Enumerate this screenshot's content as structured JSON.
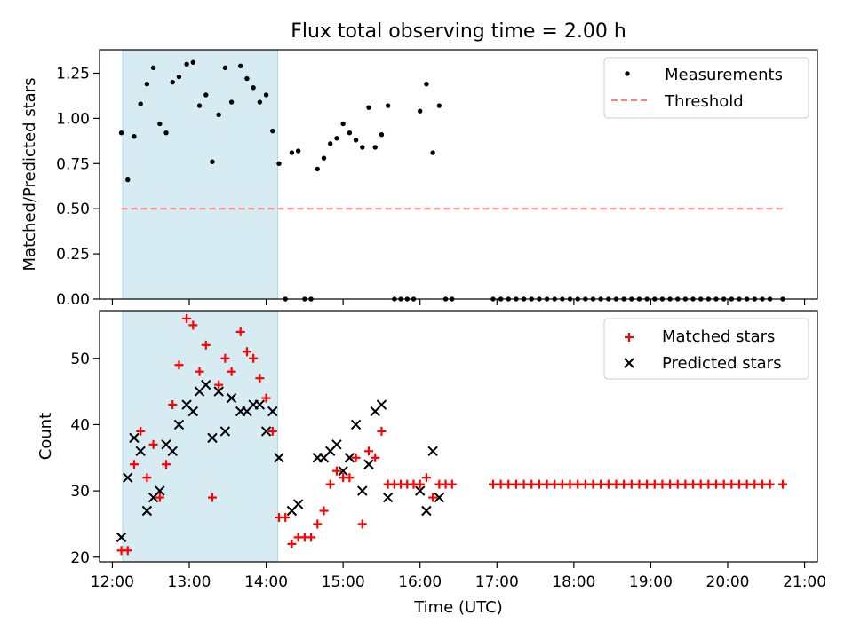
{
  "figure": {
    "title": "Flux total observing time = 2.00 h",
    "colors": {
      "shade": "#add8e6",
      "red": "#ff0000",
      "threshold": "#ff7f7f",
      "black": "#000000"
    }
  },
  "chart_data": [
    {
      "type": "scatter",
      "title": "Flux total observing time = 2.00 h",
      "xlabel": "",
      "ylabel": "Matched/Predicted stars",
      "xlim": [
        "11:50",
        "21:10"
      ],
      "ylim": [
        0,
        1.38
      ],
      "x_ticks": [
        "12:00",
        "13:00",
        "14:00",
        "15:00",
        "16:00",
        "17:00",
        "18:00",
        "19:00",
        "20:00",
        "21:00"
      ],
      "x_tick_labels_visible": false,
      "y_ticks": [
        0.0,
        0.25,
        0.5,
        0.75,
        1.0,
        1.25
      ],
      "y_tick_labels": [
        "0.00",
        "0.25",
        "0.50",
        "0.75",
        "1.00",
        "1.25"
      ],
      "shaded_region": [
        "12:08",
        "14:09"
      ],
      "legend_position": "upper right",
      "series": [
        {
          "name": "Measurements",
          "kind": "dots",
          "color": "#000000",
          "points": [
            [
              "12:07",
              0.92
            ],
            [
              "12:12",
              0.66
            ],
            [
              "12:17",
              0.9
            ],
            [
              "12:22",
              1.08
            ],
            [
              "12:27",
              1.19
            ],
            [
              "12:32",
              1.28
            ],
            [
              "12:37",
              0.97
            ],
            [
              "12:42",
              0.92
            ],
            [
              "12:47",
              1.2
            ],
            [
              "12:52",
              1.23
            ],
            [
              "12:58",
              1.3
            ],
            [
              "13:03",
              1.31
            ],
            [
              "13:08",
              1.07
            ],
            [
              "13:13",
              1.13
            ],
            [
              "13:18",
              0.76
            ],
            [
              "13:23",
              1.02
            ],
            [
              "13:28",
              1.28
            ],
            [
              "13:33",
              1.09
            ],
            [
              "13:40",
              1.29
            ],
            [
              "13:45",
              1.22
            ],
            [
              "13:50",
              1.17
            ],
            [
              "13:55",
              1.09
            ],
            [
              "14:00",
              1.13
            ],
            [
              "14:05",
              0.93
            ],
            [
              "14:10",
              0.75
            ],
            [
              "14:15",
              0.0
            ],
            [
              "14:20",
              0.81
            ],
            [
              "14:25",
              0.82
            ],
            [
              "14:30",
              0.0
            ],
            [
              "14:35",
              0.0
            ],
            [
              "14:40",
              0.72
            ],
            [
              "14:45",
              0.78
            ],
            [
              "14:50",
              0.86
            ],
            [
              "14:55",
              0.89
            ],
            [
              "15:00",
              0.97
            ],
            [
              "15:05",
              0.92
            ],
            [
              "15:10",
              0.88
            ],
            [
              "15:15",
              0.84
            ],
            [
              "15:20",
              1.06
            ],
            [
              "15:25",
              0.84
            ],
            [
              "15:30",
              0.91
            ],
            [
              "15:35",
              1.07
            ],
            [
              "15:40",
              0.0
            ],
            [
              "15:45",
              0.0
            ],
            [
              "15:50",
              0.0
            ],
            [
              "15:55",
              0.0
            ],
            [
              "16:00",
              1.04
            ],
            [
              "16:05",
              1.19
            ],
            [
              "16:10",
              0.81
            ],
            [
              "16:15",
              1.07
            ],
            [
              "16:20",
              0.0
            ],
            [
              "16:25",
              0.0
            ],
            [
              "16:57",
              0.0
            ],
            [
              "17:03",
              0.0
            ],
            [
              "17:09",
              0.0
            ],
            [
              "17:15",
              0.0
            ],
            [
              "17:21",
              0.0
            ],
            [
              "17:27",
              0.0
            ],
            [
              "17:33",
              0.0
            ],
            [
              "17:39",
              0.0
            ],
            [
              "17:45",
              0.0
            ],
            [
              "17:51",
              0.0
            ],
            [
              "17:57",
              0.0
            ],
            [
              "18:03",
              0.0
            ],
            [
              "18:09",
              0.0
            ],
            [
              "18:15",
              0.0
            ],
            [
              "18:21",
              0.0
            ],
            [
              "18:27",
              0.0
            ],
            [
              "18:33",
              0.0
            ],
            [
              "18:39",
              0.0
            ],
            [
              "18:45",
              0.0
            ],
            [
              "18:51",
              0.0
            ],
            [
              "18:57",
              0.0
            ],
            [
              "19:03",
              0.0
            ],
            [
              "19:09",
              0.0
            ],
            [
              "19:15",
              0.0
            ],
            [
              "19:21",
              0.0
            ],
            [
              "19:27",
              0.0
            ],
            [
              "19:33",
              0.0
            ],
            [
              "19:39",
              0.0
            ],
            [
              "19:45",
              0.0
            ],
            [
              "19:51",
              0.0
            ],
            [
              "19:57",
              0.0
            ],
            [
              "20:03",
              0.0
            ],
            [
              "20:09",
              0.0
            ],
            [
              "20:15",
              0.0
            ],
            [
              "20:21",
              0.0
            ],
            [
              "20:27",
              0.0
            ],
            [
              "20:33",
              0.0
            ],
            [
              "20:43",
              0.0
            ]
          ]
        },
        {
          "name": "Threshold",
          "kind": "dashed-line",
          "color": "#ff7f7f",
          "points": [
            [
              "12:07",
              0.5
            ],
            [
              "20:43",
              0.5
            ]
          ]
        }
      ]
    },
    {
      "type": "scatter",
      "title": "",
      "xlabel": "Time (UTC)",
      "ylabel": "Count",
      "xlim": [
        "11:50",
        "21:10"
      ],
      "ylim": [
        19.3,
        57.2
      ],
      "x_ticks": [
        "12:00",
        "13:00",
        "14:00",
        "15:00",
        "16:00",
        "17:00",
        "18:00",
        "19:00",
        "20:00",
        "21:00"
      ],
      "x_tick_labels": [
        "12:00",
        "13:00",
        "14:00",
        "15:00",
        "16:00",
        "17:00",
        "18:00",
        "19:00",
        "20:00",
        "21:00"
      ],
      "y_ticks": [
        20,
        30,
        40,
        50
      ],
      "y_tick_labels": [
        "20",
        "30",
        "40",
        "50"
      ],
      "shaded_region": [
        "12:08",
        "14:09"
      ],
      "legend_position": "upper right",
      "series": [
        {
          "name": "Matched stars",
          "kind": "plus",
          "color": "#ff0000",
          "points": [
            [
              "12:07",
              21
            ],
            [
              "12:12",
              21
            ],
            [
              "12:17",
              34
            ],
            [
              "12:22",
              39
            ],
            [
              "12:27",
              32
            ],
            [
              "12:32",
              37
            ],
            [
              "12:37",
              29
            ],
            [
              "12:42",
              34
            ],
            [
              "12:47",
              43
            ],
            [
              "12:52",
              49
            ],
            [
              "12:58",
              56
            ],
            [
              "13:03",
              55
            ],
            [
              "13:08",
              48
            ],
            [
              "13:13",
              52
            ],
            [
              "13:18",
              29
            ],
            [
              "13:23",
              46
            ],
            [
              "13:28",
              50
            ],
            [
              "13:33",
              48
            ],
            [
              "13:40",
              54
            ],
            [
              "13:45",
              51
            ],
            [
              "13:50",
              50
            ],
            [
              "13:55",
              47
            ],
            [
              "14:00",
              44
            ],
            [
              "14:05",
              39
            ],
            [
              "14:10",
              26
            ],
            [
              "14:15",
              26
            ],
            [
              "14:20",
              22
            ],
            [
              "14:25",
              23
            ],
            [
              "14:30",
              23
            ],
            [
              "14:35",
              23
            ],
            [
              "14:40",
              25
            ],
            [
              "14:45",
              27
            ],
            [
              "14:50",
              31
            ],
            [
              "14:55",
              33
            ],
            [
              "15:00",
              32
            ],
            [
              "15:05",
              32
            ],
            [
              "15:10",
              35
            ],
            [
              "15:15",
              25
            ],
            [
              "15:20",
              36
            ],
            [
              "15:25",
              35
            ],
            [
              "15:30",
              39
            ],
            [
              "15:35",
              31
            ],
            [
              "15:40",
              31
            ],
            [
              "15:45",
              31
            ],
            [
              "15:50",
              31
            ],
            [
              "15:55",
              31
            ],
            [
              "16:00",
              31
            ],
            [
              "16:05",
              32
            ],
            [
              "16:10",
              29
            ],
            [
              "16:15",
              31
            ],
            [
              "16:20",
              31
            ],
            [
              "16:25",
              31
            ],
            [
              "16:57",
              31
            ],
            [
              "17:03",
              31
            ],
            [
              "17:09",
              31
            ],
            [
              "17:15",
              31
            ],
            [
              "17:21",
              31
            ],
            [
              "17:27",
              31
            ],
            [
              "17:33",
              31
            ],
            [
              "17:39",
              31
            ],
            [
              "17:45",
              31
            ],
            [
              "17:51",
              31
            ],
            [
              "17:57",
              31
            ],
            [
              "18:03",
              31
            ],
            [
              "18:09",
              31
            ],
            [
              "18:15",
              31
            ],
            [
              "18:21",
              31
            ],
            [
              "18:27",
              31
            ],
            [
              "18:33",
              31
            ],
            [
              "18:39",
              31
            ],
            [
              "18:45",
              31
            ],
            [
              "18:51",
              31
            ],
            [
              "18:57",
              31
            ],
            [
              "19:03",
              31
            ],
            [
              "19:09",
              31
            ],
            [
              "19:15",
              31
            ],
            [
              "19:21",
              31
            ],
            [
              "19:27",
              31
            ],
            [
              "19:33",
              31
            ],
            [
              "19:39",
              31
            ],
            [
              "19:45",
              31
            ],
            [
              "19:51",
              31
            ],
            [
              "19:57",
              31
            ],
            [
              "20:03",
              31
            ],
            [
              "20:09",
              31
            ],
            [
              "20:15",
              31
            ],
            [
              "20:21",
              31
            ],
            [
              "20:27",
              31
            ],
            [
              "20:33",
              31
            ],
            [
              "20:43",
              31
            ]
          ]
        },
        {
          "name": "Predicted stars",
          "kind": "x",
          "color": "#000000",
          "points": [
            [
              "12:07",
              23
            ],
            [
              "12:12",
              32
            ],
            [
              "12:17",
              38
            ],
            [
              "12:22",
              36
            ],
            [
              "12:27",
              27
            ],
            [
              "12:32",
              29
            ],
            [
              "12:37",
              30
            ],
            [
              "12:42",
              37
            ],
            [
              "12:47",
              36
            ],
            [
              "12:52",
              40
            ],
            [
              "12:58",
              43
            ],
            [
              "13:03",
              42
            ],
            [
              "13:08",
              45
            ],
            [
              "13:13",
              46
            ],
            [
              "13:18",
              38
            ],
            [
              "13:23",
              45
            ],
            [
              "13:28",
              39
            ],
            [
              "13:33",
              44
            ],
            [
              "13:40",
              42
            ],
            [
              "13:45",
              42
            ],
            [
              "13:50",
              43
            ],
            [
              "13:55",
              43
            ],
            [
              "14:00",
              39
            ],
            [
              "14:05",
              42
            ],
            [
              "14:10",
              35
            ],
            [
              "14:20",
              27
            ],
            [
              "14:25",
              28
            ],
            [
              "14:40",
              35
            ],
            [
              "14:45",
              35
            ],
            [
              "14:50",
              36
            ],
            [
              "14:55",
              37
            ],
            [
              "15:00",
              33
            ],
            [
              "15:05",
              35
            ],
            [
              "15:10",
              40
            ],
            [
              "15:15",
              30
            ],
            [
              "15:20",
              34
            ],
            [
              "15:25",
              42
            ],
            [
              "15:30",
              43
            ],
            [
              "15:35",
              29
            ],
            [
              "16:00",
              30
            ],
            [
              "16:05",
              27
            ],
            [
              "16:10",
              36
            ],
            [
              "16:15",
              29
            ]
          ]
        }
      ]
    }
  ]
}
